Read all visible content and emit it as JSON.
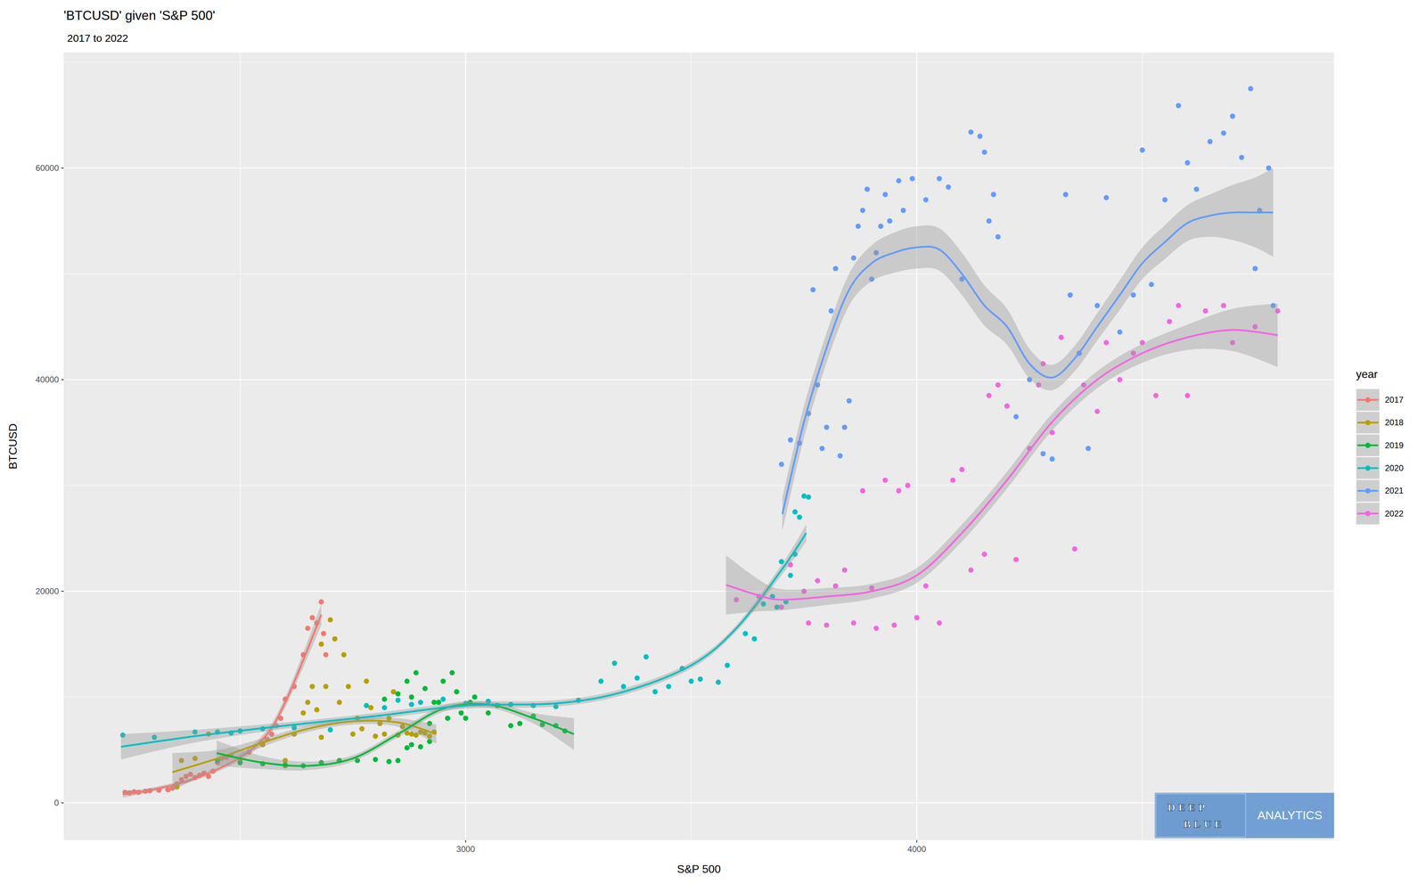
{
  "chart_data": {
    "type": "scatter",
    "title": "'BTCUSD' given 'S&P 500'",
    "subtitle": "2017 to 2022",
    "x_label": "S&P 500",
    "y_label": "BTCUSD",
    "legend_title": "year",
    "legend": "right",
    "grid": true,
    "xlim": [
      2109,
      4925
    ],
    "ylim": [
      -3524,
      70915
    ],
    "xticks": [
      3000,
      4000
    ],
    "yticks": [
      0,
      20000,
      40000,
      60000
    ],
    "annotations": [
      "DEEP",
      "BLUE",
      "ANALYTICS"
    ],
    "series": [
      {
        "name": "2017",
        "color": "#F8766D",
        "x": [
          2245,
          2255,
          2265,
          2275,
          2290,
          2300,
          2320,
          2340,
          2350,
          2360,
          2370,
          2380,
          2390,
          2400,
          2410,
          2420,
          2430,
          2440,
          2450,
          2460,
          2470,
          2480,
          2500,
          2520,
          2550,
          2560,
          2570,
          2580,
          2590,
          2600,
          2620,
          2640,
          2650,
          2660,
          2670,
          2680,
          2690,
          2685
        ],
        "values": [
          1000,
          950,
          1050,
          1000,
          1100,
          1150,
          1200,
          1250,
          1400,
          1800,
          2200,
          2500,
          2700,
          2400,
          2600,
          2800,
          2500,
          3000,
          3800,
          4200,
          4300,
          4500,
          4000,
          4800,
          5600,
          6000,
          6500,
          7300,
          8000,
          9800,
          11000,
          14000,
          16500,
          17500,
          17000,
          19000,
          14000,
          16000
        ],
        "fit": {
          "x": [
            2240,
            2300,
            2400,
            2500,
            2560,
            2600,
            2640,
            2680
          ],
          "values": [
            800,
            1200,
            2300,
            4300,
            6500,
            9500,
            13500,
            17800
          ],
          "lower": [
            500,
            1000,
            2100,
            4000,
            6100,
            9000,
            12800,
            16800
          ],
          "upper": [
            1100,
            1400,
            2500,
            4600,
            6900,
            10000,
            14200,
            18800
          ]
        }
      },
      {
        "name": "2018",
        "color": "#B79F00",
        "x": [
          2360,
          2370,
          2400,
          2430,
          2450,
          2550,
          2600,
          2620,
          2640,
          2650,
          2660,
          2670,
          2680,
          2690,
          2700,
          2710,
          2720,
          2730,
          2740,
          2750,
          2760,
          2770,
          2780,
          2790,
          2800,
          2810,
          2820,
          2830,
          2840,
          2850,
          2860,
          2870,
          2880,
          2890,
          2900,
          2910,
          2920,
          2930,
          2600,
          2680
        ],
        "values": [
          1500,
          4000,
          4200,
          6500,
          4000,
          5500,
          4000,
          6500,
          8500,
          9500,
          11000,
          8800,
          15000,
          11000,
          17300,
          15500,
          9500,
          14000,
          11000,
          6500,
          8000,
          7000,
          11500,
          9000,
          6300,
          7500,
          6500,
          8000,
          10500,
          6400,
          7200,
          6600,
          6500,
          6400,
          6700,
          6600,
          6300,
          6700,
          3500,
          6200
        ],
        "fit": {
          "x": [
            2350,
            2450,
            2550,
            2650,
            2750,
            2850,
            2935
          ],
          "values": [
            2900,
            4200,
            5700,
            7000,
            7700,
            7600,
            6500
          ],
          "lower": [
            1100,
            3400,
            5300,
            6700,
            7400,
            7200,
            5600
          ],
          "upper": [
            4700,
            5000,
            6100,
            7300,
            8000,
            8000,
            7400
          ]
        }
      },
      {
        "name": "2019",
        "color": "#00BA38",
        "x": [
          2450,
          2500,
          2550,
          2600,
          2640,
          2680,
          2720,
          2760,
          2800,
          2830,
          2850,
          2870,
          2880,
          2900,
          2920,
          2850,
          2870,
          2890,
          2910,
          2930,
          2950,
          2970,
          2980,
          2990,
          3000,
          3010,
          3020,
          3050,
          3070,
          3100,
          3120,
          3150,
          3170,
          3200,
          3220,
          2960,
          2940,
          2920,
          2880,
          2820
        ],
        "values": [
          4000,
          3800,
          3700,
          3600,
          3500,
          3800,
          4000,
          4000,
          4100,
          3900,
          4000,
          5200,
          5500,
          5300,
          5800,
          10300,
          11500,
          12300,
          10800,
          9500,
          11500,
          12300,
          10500,
          8500,
          8000,
          9500,
          10000,
          8500,
          9200,
          7300,
          7500,
          8200,
          7400,
          7300,
          6800,
          8000,
          9500,
          7500,
          10000,
          9800
        ],
        "fit": {
          "x": [
            2448,
            2550,
            2650,
            2750,
            2850,
            2950,
            3050,
            3150,
            3240
          ],
          "values": [
            4700,
            3800,
            3500,
            4200,
            6500,
            8900,
            9300,
            8000,
            6500
          ],
          "lower": [
            3500,
            3200,
            3100,
            3900,
            6200,
            8600,
            9000,
            7500,
            5000
          ],
          "upper": [
            5900,
            4400,
            3900,
            4500,
            6800,
            9200,
            9600,
            8500,
            8000
          ]
        }
      },
      {
        "name": "2020",
        "color": "#00BFC4",
        "x": [
          2240,
          2310,
          2400,
          2450,
          2480,
          2500,
          2550,
          2620,
          2700,
          2780,
          2820,
          2850,
          2880,
          2900,
          2950,
          3000,
          3050,
          3100,
          3150,
          3200,
          3250,
          3300,
          3330,
          3350,
          3380,
          3400,
          3420,
          3450,
          3480,
          3500,
          3520,
          3560,
          3580,
          3620,
          3640,
          3660,
          3680,
          3700,
          3720,
          3730,
          3740,
          3750,
          3710,
          3690,
          3730,
          3760
        ],
        "values": [
          6400,
          6200,
          6700,
          6700,
          6600,
          6800,
          7000,
          7100,
          6900,
          9200,
          9000,
          9700,
          9300,
          9500,
          9800,
          9400,
          9600,
          9300,
          9200,
          9100,
          9700,
          11500,
          13200,
          11000,
          11800,
          13800,
          10500,
          11000,
          12700,
          11500,
          11700,
          11400,
          13000,
          16000,
          15500,
          18800,
          19500,
          22800,
          21500,
          23500,
          27000,
          29000,
          19000,
          18500,
          27500,
          28900
        ],
        "fit": {
          "x": [
            2236,
            2400,
            2600,
            2800,
            3000,
            3200,
            3350,
            3500,
            3600,
            3700,
            3755
          ],
          "values": [
            5300,
            6300,
            7300,
            8200,
            9200,
            9400,
            10500,
            13000,
            16500,
            22000,
            25500
          ],
          "lower": [
            4100,
            5700,
            7000,
            7900,
            8900,
            9100,
            10200,
            12700,
            16200,
            21500,
            24700
          ],
          "upper": [
            6500,
            6900,
            7600,
            8500,
            9500,
            9700,
            10800,
            13300,
            16800,
            22500,
            26300
          ]
        }
      },
      {
        "name": "2021",
        "color": "#619CFF",
        "x": [
          3700,
          3720,
          3740,
          3760,
          3770,
          3780,
          3790,
          3800,
          3810,
          3820,
          3830,
          3840,
          3850,
          3860,
          3870,
          3880,
          3890,
          3900,
          3910,
          3920,
          3930,
          3940,
          3960,
          3970,
          3990,
          4020,
          4050,
          4070,
          4100,
          4120,
          4140,
          4150,
          4160,
          4170,
          4180,
          4200,
          4220,
          4250,
          4280,
          4300,
          4330,
          4340,
          4360,
          4380,
          4400,
          4420,
          4450,
          4480,
          4500,
          4520,
          4550,
          4580,
          4600,
          4620,
          4650,
          4680,
          4700,
          4720,
          4740,
          4750,
          4760,
          4790,
          4780
        ],
        "values": [
          32000,
          34300,
          34000,
          36800,
          48500,
          39500,
          33500,
          35500,
          46500,
          50500,
          32800,
          35500,
          38000,
          51500,
          54500,
          56000,
          58000,
          49500,
          52000,
          54500,
          57500,
          55000,
          58800,
          56000,
          59000,
          57000,
          59000,
          58200,
          49500,
          63400,
          63000,
          61500,
          55000,
          57500,
          53500,
          37500,
          36500,
          40000,
          33000,
          32500,
          57500,
          48000,
          42500,
          33500,
          47000,
          57200,
          44500,
          48000,
          61700,
          49000,
          57000,
          65900,
          60500,
          58000,
          62500,
          63300,
          64900,
          61000,
          67500,
          50500,
          56000,
          47000,
          60000
        ],
        "fit": {
          "x": [
            3702,
            3750,
            3800,
            3850,
            3900,
            3950,
            4000,
            4050,
            4100,
            4150,
            4200,
            4250,
            4300,
            4350,
            4400,
            4450,
            4500,
            4550,
            4600,
            4650,
            4700,
            4750,
            4790
          ],
          "values": [
            27300,
            36000,
            43000,
            48500,
            51000,
            52000,
            52500,
            52300,
            50000,
            47000,
            45000,
            41500,
            40200,
            42000,
            45000,
            48000,
            51000,
            53000,
            54800,
            55500,
            55800,
            55800,
            55800
          ],
          "lower": [
            25700,
            34500,
            41600,
            47000,
            49300,
            50100,
            50500,
            50300,
            48000,
            45100,
            43300,
            40100,
            39000,
            40800,
            43700,
            46600,
            49500,
            51400,
            53100,
            53500,
            53200,
            52500,
            51600
          ],
          "upper": [
            28900,
            37500,
            44400,
            50000,
            52700,
            53900,
            54500,
            54300,
            52000,
            48900,
            46700,
            42900,
            41400,
            43200,
            46300,
            49400,
            52500,
            54600,
            56500,
            57500,
            58400,
            59100,
            60000
          ]
        }
      },
      {
        "name": "2022",
        "color": "#F564E3",
        "x": [
          3600,
          3650,
          3700,
          3720,
          3750,
          3760,
          3780,
          3800,
          3820,
          3840,
          3860,
          3880,
          3900,
          3910,
          3930,
          3950,
          3960,
          3980,
          4000,
          4020,
          4050,
          4080,
          4100,
          4120,
          4150,
          4160,
          4180,
          4200,
          4220,
          4250,
          4270,
          4280,
          4300,
          4320,
          4350,
          4370,
          4400,
          4420,
          4450,
          4480,
          4500,
          4530,
          4560,
          4580,
          4600,
          4640,
          4680,
          4700,
          4750,
          4800
        ],
        "values": [
          19200,
          19500,
          18500,
          22500,
          20000,
          17000,
          21000,
          16800,
          20500,
          22000,
          17000,
          29500,
          20300,
          16500,
          30500,
          16800,
          29500,
          30000,
          17500,
          20500,
          17000,
          30500,
          31500,
          22000,
          23500,
          38500,
          39500,
          37500,
          23000,
          33500,
          39500,
          41500,
          35000,
          44000,
          24000,
          39500,
          37000,
          43500,
          40000,
          42500,
          43500,
          38500,
          45500,
          47000,
          38500,
          46500,
          47000,
          43500,
          45000,
          46500
        ],
        "fit": {
          "x": [
            3577,
            3650,
            3700,
            3800,
            3900,
            4000,
            4100,
            4200,
            4300,
            4400,
            4500,
            4600,
            4700,
            4800
          ],
          "values": [
            20600,
            19600,
            19200,
            19500,
            20000,
            21500,
            25500,
            30500,
            36000,
            40000,
            42500,
            44000,
            44700,
            44200
          ],
          "lower": [
            17800,
            18100,
            18200,
            18700,
            19300,
            20800,
            24700,
            29700,
            35200,
            39200,
            41600,
            42800,
            42700,
            41200
          ],
          "upper": [
            23400,
            21100,
            20200,
            20300,
            20700,
            22200,
            26300,
            31300,
            36800,
            40800,
            43400,
            45200,
            46700,
            47200
          ]
        }
      }
    ]
  }
}
